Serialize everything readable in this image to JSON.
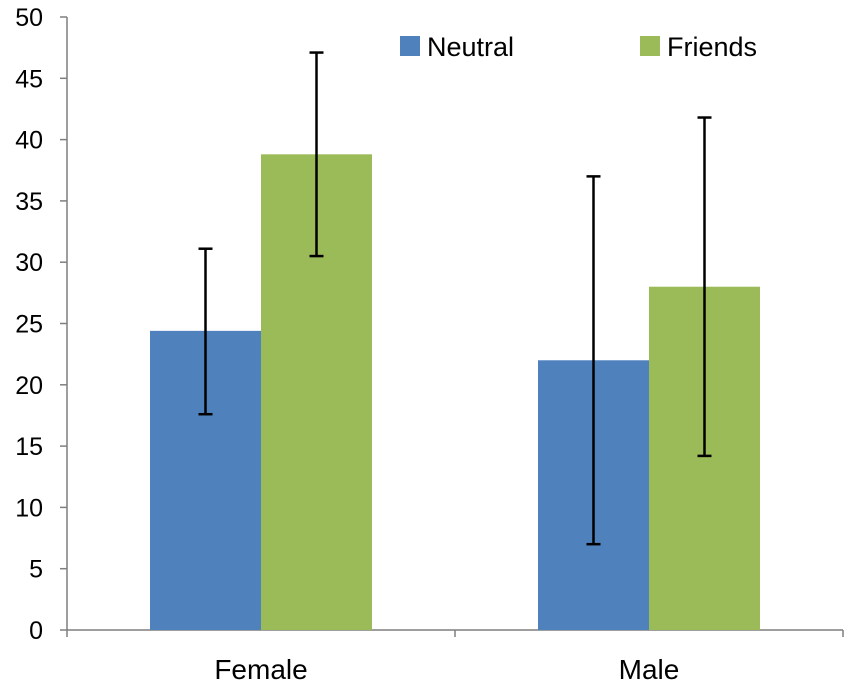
{
  "chart_data": {
    "type": "bar",
    "title": "",
    "xlabel": "",
    "ylabel": "",
    "categories": [
      "Female",
      "Male"
    ],
    "ylim": [
      0,
      50
    ],
    "yticks": [
      0,
      5,
      10,
      15,
      20,
      25,
      30,
      35,
      40,
      45,
      50
    ],
    "grid": false,
    "legend_position": "top-right",
    "series": [
      {
        "name": "Neutral",
        "color": "#4F81BD",
        "values": [
          24.4,
          22.0
        ],
        "err_low": [
          17.6,
          7.0
        ],
        "err_high": [
          31.1,
          37.0
        ]
      },
      {
        "name": "Friends",
        "color": "#9BBB59",
        "values": [
          38.8,
          28.0
        ],
        "err_low": [
          30.5,
          14.2
        ],
        "err_high": [
          47.1,
          41.8
        ]
      }
    ]
  }
}
